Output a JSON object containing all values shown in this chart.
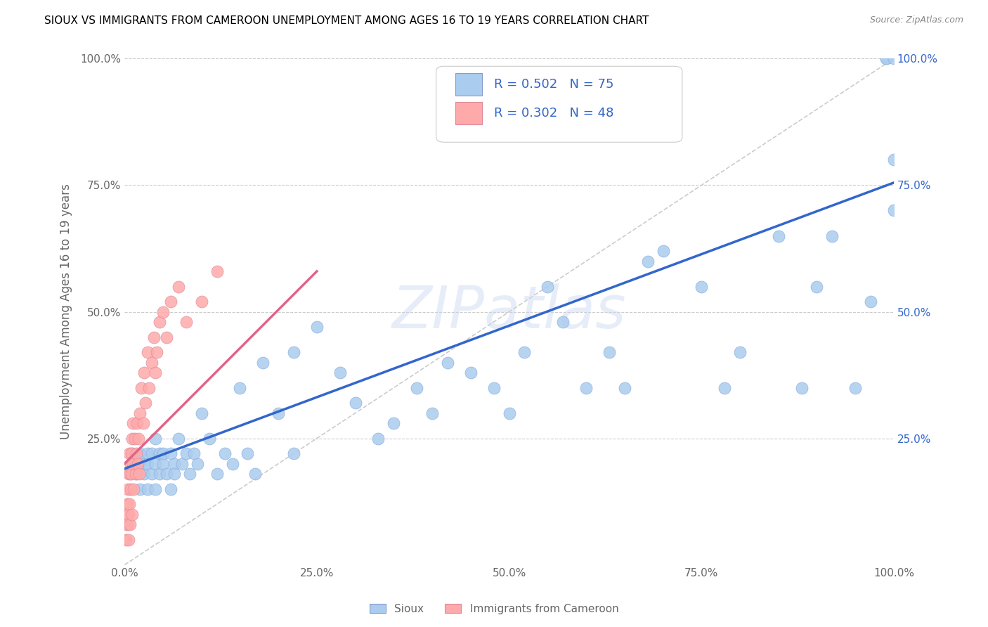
{
  "title": "SIOUX VS IMMIGRANTS FROM CAMEROON UNEMPLOYMENT AMONG AGES 16 TO 19 YEARS CORRELATION CHART",
  "source": "Source: ZipAtlas.com",
  "ylabel": "Unemployment Among Ages 16 to 19 years",
  "xlim": [
    0,
    1.0
  ],
  "ylim": [
    0,
    1.0
  ],
  "xticks": [
    0.0,
    0.25,
    0.5,
    0.75,
    1.0
  ],
  "yticks": [
    0.25,
    0.5,
    0.75,
    1.0
  ],
  "watermark": "ZIPatlas",
  "legend_labels": [
    "Sioux",
    "Immigrants from Cameroon"
  ],
  "R_sioux": 0.502,
  "N_sioux": 75,
  "R_cameroon": 0.302,
  "N_cameroon": 48,
  "sioux_color": "#aaccee",
  "cameroon_color": "#ffaaaa",
  "sioux_line_color": "#3366cc",
  "cameroon_line_color": "#dd6688",
  "diagonal_color": "#cccccc",
  "background_color": "#ffffff",
  "sioux_x": [
    0.01,
    0.01,
    0.015,
    0.02,
    0.02,
    0.025,
    0.025,
    0.03,
    0.03,
    0.03,
    0.035,
    0.035,
    0.04,
    0.04,
    0.04,
    0.045,
    0.045,
    0.05,
    0.05,
    0.055,
    0.06,
    0.06,
    0.065,
    0.065,
    0.07,
    0.075,
    0.08,
    0.085,
    0.09,
    0.095,
    0.1,
    0.11,
    0.12,
    0.13,
    0.14,
    0.15,
    0.16,
    0.17,
    0.18,
    0.2,
    0.22,
    0.22,
    0.25,
    0.28,
    0.3,
    0.33,
    0.35,
    0.38,
    0.4,
    0.42,
    0.45,
    0.48,
    0.5,
    0.52,
    0.55,
    0.57,
    0.6,
    0.63,
    0.65,
    0.68,
    0.7,
    0.75,
    0.78,
    0.8,
    0.85,
    0.88,
    0.9,
    0.92,
    0.95,
    0.97,
    0.99,
    0.99,
    1.0,
    1.0,
    1.0
  ],
  "sioux_y": [
    0.2,
    0.22,
    0.18,
    0.15,
    0.22,
    0.18,
    0.2,
    0.22,
    0.15,
    0.2,
    0.18,
    0.22,
    0.2,
    0.15,
    0.25,
    0.22,
    0.18,
    0.2,
    0.22,
    0.18,
    0.15,
    0.22,
    0.2,
    0.18,
    0.25,
    0.2,
    0.22,
    0.18,
    0.22,
    0.2,
    0.3,
    0.25,
    0.18,
    0.22,
    0.2,
    0.35,
    0.22,
    0.18,
    0.4,
    0.3,
    0.42,
    0.22,
    0.47,
    0.38,
    0.32,
    0.25,
    0.28,
    0.35,
    0.3,
    0.4,
    0.38,
    0.35,
    0.3,
    0.42,
    0.55,
    0.48,
    0.35,
    0.42,
    0.35,
    0.6,
    0.62,
    0.55,
    0.35,
    0.42,
    0.65,
    0.35,
    0.55,
    0.65,
    0.35,
    0.52,
    1.0,
    1.0,
    0.7,
    0.8,
    1.0
  ],
  "cameroon_x": [
    0.002,
    0.002,
    0.003,
    0.003,
    0.004,
    0.004,
    0.005,
    0.005,
    0.005,
    0.006,
    0.006,
    0.007,
    0.007,
    0.008,
    0.008,
    0.009,
    0.009,
    0.01,
    0.01,
    0.011,
    0.011,
    0.012,
    0.013,
    0.014,
    0.015,
    0.016,
    0.017,
    0.018,
    0.019,
    0.02,
    0.022,
    0.024,
    0.025,
    0.027,
    0.03,
    0.032,
    0.035,
    0.038,
    0.04,
    0.042,
    0.045,
    0.05,
    0.055,
    0.06,
    0.07,
    0.08,
    0.1,
    0.12
  ],
  "cameroon_y": [
    0.05,
    0.08,
    0.1,
    0.12,
    0.08,
    0.15,
    0.1,
    0.18,
    0.05,
    0.12,
    0.22,
    0.08,
    0.18,
    0.2,
    0.15,
    0.22,
    0.18,
    0.25,
    0.1,
    0.2,
    0.28,
    0.15,
    0.25,
    0.18,
    0.22,
    0.28,
    0.2,
    0.25,
    0.18,
    0.3,
    0.35,
    0.28,
    0.38,
    0.32,
    0.42,
    0.35,
    0.4,
    0.45,
    0.38,
    0.42,
    0.48,
    0.5,
    0.45,
    0.52,
    0.55,
    0.48,
    0.52,
    0.58
  ],
  "sioux_trendline": [
    0.19,
    0.755
  ],
  "cameroon_trendline_x": [
    0.0,
    0.25
  ],
  "cameroon_trendline_y": [
    0.2,
    0.58
  ]
}
